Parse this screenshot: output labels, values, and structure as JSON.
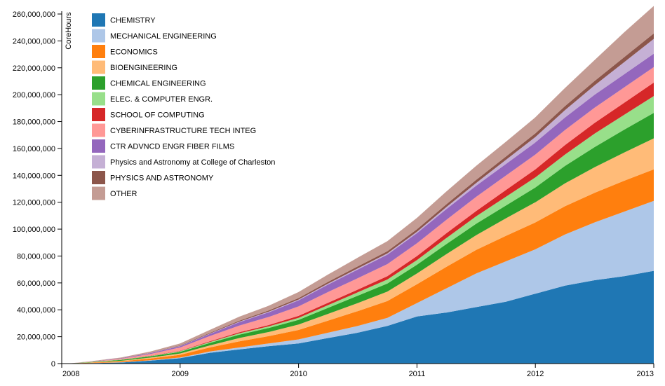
{
  "chart_data": {
    "type": "area",
    "stacked": true,
    "ylabel": "CoreHours",
    "xlabel": "",
    "title": "",
    "ylim": [
      0,
      260000000
    ],
    "yticks": [
      0,
      20000000,
      40000000,
      60000000,
      80000000,
      100000000,
      120000000,
      140000000,
      160000000,
      180000000,
      200000000,
      220000000,
      240000000,
      260000000
    ],
    "ytick_labels": [
      "0",
      "20,000,000",
      "40,000,000",
      "60,000,000",
      "80,000,000",
      "100,000,000",
      "120,000,000",
      "140,000,000",
      "160,000,000",
      "180,000,000",
      "200,000,000",
      "220,000,000",
      "240,000,000",
      "260,000,000"
    ],
    "xlim": [
      2008,
      2013
    ],
    "xticks": [
      2008,
      2009,
      2010,
      2011,
      2012,
      2013
    ],
    "xtick_labels": [
      "2008",
      "2009",
      "2010",
      "2011",
      "2012",
      "2013"
    ],
    "legend_position": "top-left",
    "grid": false,
    "x": [
      2008.05,
      2008.25,
      2008.5,
      2008.75,
      2009.0,
      2009.25,
      2009.5,
      2009.75,
      2010.0,
      2010.25,
      2010.5,
      2010.75,
      2011.0,
      2011.25,
      2011.5,
      2011.75,
      2012.0,
      2012.25,
      2012.5,
      2012.75,
      2013.0
    ],
    "series": [
      {
        "name": "CHEMISTRY",
        "color": "#1f77b4",
        "values": [
          0,
          300000,
          800000,
          2200000,
          4000000,
          8000000,
          10500000,
          13000000,
          15000000,
          19000000,
          23000000,
          28000000,
          35000000,
          38000000,
          42000000,
          46000000,
          52000000,
          58000000,
          62000000,
          65000000,
          69000000
        ]
      },
      {
        "name": "MECHANICAL ENGINEERING",
        "color": "#aec7e8",
        "values": [
          0,
          100000,
          200000,
          300000,
          500000,
          1000000,
          1500000,
          2000000,
          3000000,
          4000000,
          5000000,
          6000000,
          10000000,
          18000000,
          25000000,
          30000000,
          33000000,
          38000000,
          43000000,
          48000000,
          52000000
        ]
      },
      {
        "name": "ECONOMICS",
        "color": "#ff7f0e",
        "values": [
          0,
          300000,
          700000,
          1300000,
          2000000,
          3000000,
          4500000,
          5500000,
          7000000,
          9000000,
          11000000,
          12500000,
          14000000,
          16000000,
          17500000,
          19000000,
          20000000,
          21000000,
          22000000,
          23000000,
          23500000
        ]
      },
      {
        "name": "BIOENGINEERING",
        "color": "#ffbb78",
        "values": [
          0,
          200000,
          400000,
          700000,
          1000000,
          1500000,
          2500000,
          3000000,
          4000000,
          5000000,
          6000000,
          7000000,
          8000000,
          9500000,
          11000000,
          13000000,
          15000000,
          17000000,
          19000000,
          21000000,
          23000000
        ]
      },
      {
        "name": "CHEMICAL ENGINEERING",
        "color": "#2ca02c",
        "values": [
          0,
          300000,
          600000,
          900000,
          1200000,
          1800000,
          2500000,
          3000000,
          3500000,
          4500000,
          5500000,
          6000000,
          6500000,
          7500000,
          8500000,
          9500000,
          11000000,
          13000000,
          15000000,
          17000000,
          19000000
        ]
      },
      {
        "name": "ELEC. & COMPUTER ENGR.",
        "color": "#98df8a",
        "values": [
          0,
          100000,
          200000,
          300000,
          500000,
          700000,
          1000000,
          1200000,
          1500000,
          2000000,
          2500000,
          3000000,
          3500000,
          4500000,
          5500000,
          6500000,
          7500000,
          8500000,
          10000000,
          11000000,
          12500000
        ]
      },
      {
        "name": "SCHOOL OF COMPUTING",
        "color": "#d62728",
        "values": [
          0,
          0,
          100000,
          200000,
          300000,
          500000,
          800000,
          1000000,
          1500000,
          1800000,
          2000000,
          2500000,
          3000000,
          3500000,
          4000000,
          5000000,
          6000000,
          7000000,
          8000000,
          9000000,
          10000000
        ]
      },
      {
        "name": "CYBERINFRASTRUCTURE TECH INTEG",
        "color": "#ff9896",
        "values": [
          0,
          200000,
          600000,
          1300000,
          2500000,
          4000000,
          5000000,
          6000000,
          7000000,
          8000000,
          8500000,
          9000000,
          9500000,
          10000000,
          10500000,
          10800000,
          11000000,
          11200000,
          11300000,
          11400000,
          11500000
        ]
      },
      {
        "name": "CTR ADVNCD ENGR FIBER FILMS",
        "color": "#9467bd",
        "values": [
          0,
          100000,
          300000,
          600000,
          1000000,
          1500000,
          2500000,
          3500000,
          4500000,
          5500000,
          6500000,
          7000000,
          7500000,
          8000000,
          8300000,
          8600000,
          9000000,
          9300000,
          9600000,
          9800000,
          10000000
        ]
      },
      {
        "name": "Physics and Astronomy at College of Charleston",
        "color": "#c5b0d5",
        "values": [
          0,
          0,
          0,
          100000,
          200000,
          300000,
          400000,
          500000,
          600000,
          700000,
          800000,
          900000,
          1000000,
          1500000,
          2000000,
          3000000,
          4000000,
          5500000,
          7000000,
          9000000,
          11000000
        ]
      },
      {
        "name": "PHYSICS AND ASTRONOMY",
        "color": "#8c564b",
        "values": [
          0,
          0,
          100000,
          200000,
          300000,
          500000,
          700000,
          900000,
          1100000,
          1300000,
          1500000,
          1700000,
          1900000,
          2100000,
          2300000,
          2500000,
          2700000,
          3000000,
          3300000,
          3700000,
          4000000
        ]
      },
      {
        "name": "OTHER",
        "color": "#c49c94",
        "values": [
          0,
          200000,
          500000,
          900000,
          1500000,
          2200000,
          3000000,
          3500000,
          4500000,
          5500000,
          6500000,
          7500000,
          8500000,
          9500000,
          10500000,
          11000000,
          12000000,
          13500000,
          15500000,
          18500000,
          20500000
        ]
      }
    ]
  }
}
